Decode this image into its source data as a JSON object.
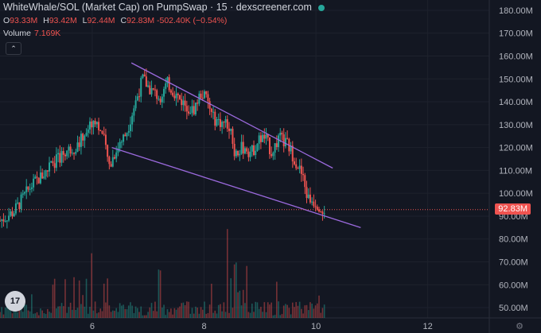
{
  "header": {
    "title": "WhiteWhale/SOL (Market Cap) on PumpSwap · 15 · dexscreener.com",
    "ohlc": [
      {
        "k": "O",
        "v": "93.33M"
      },
      {
        "k": "H",
        "v": "93.42M"
      },
      {
        "k": "L",
        "v": "92.44M"
      },
      {
        "k": "C",
        "v": "92.83M -502.40K (−0.54%)"
      }
    ],
    "volume_label": "Volume",
    "volume_value": "7.169K",
    "collapse_glyph": "⌃"
  },
  "logo_text": "17",
  "settings_glyph": "⚙",
  "colors": {
    "up": "#26a69a",
    "down": "#ef5350",
    "channel": "#9c6ade",
    "bg": "#131722",
    "grid": "#1e222d"
  },
  "chart_data": {
    "type": "candlestick",
    "y_axis_ticks": [
      "180.00M",
      "170.00M",
      "160.00M",
      "150.00M",
      "140.00M",
      "130.00M",
      "120.00M",
      "110.00M",
      "100.00M",
      "90.00M",
      "80.00M",
      "70.00M",
      "60.00M",
      "50.00M"
    ],
    "y_tick_values": [
      180,
      170,
      160,
      150,
      140,
      130,
      120,
      110,
      100,
      90,
      80,
      70,
      60,
      50
    ],
    "x_axis_ticks": [
      "6",
      "8",
      "10",
      "12"
    ],
    "x_tick_values": [
      6,
      8,
      10,
      12
    ],
    "x_range": [
      4.35,
      13.1
    ],
    "y_range_mcap_millions": [
      45.5,
      184.5
    ],
    "last_price_label": "92.83M",
    "last_price": 92.83,
    "close_path": [
      [
        4.35,
        88
      ],
      [
        4.6,
        92
      ],
      [
        4.9,
        103
      ],
      [
        5.2,
        110
      ],
      [
        5.5,
        118
      ],
      [
        5.75,
        121
      ],
      [
        5.9,
        128
      ],
      [
        6.05,
        133
      ],
      [
        6.2,
        124
      ],
      [
        6.3,
        112
      ],
      [
        6.45,
        120
      ],
      [
        6.6,
        126
      ],
      [
        6.75,
        138
      ],
      [
        6.9,
        150
      ],
      [
        7.05,
        145
      ],
      [
        7.2,
        142
      ],
      [
        7.35,
        148
      ],
      [
        7.5,
        143
      ],
      [
        7.65,
        139
      ],
      [
        7.8,
        136
      ],
      [
        7.95,
        144
      ],
      [
        8.05,
        141
      ],
      [
        8.15,
        133
      ],
      [
        8.3,
        131
      ],
      [
        8.45,
        130
      ],
      [
        8.55,
        118
      ],
      [
        8.7,
        120
      ],
      [
        8.85,
        118
      ],
      [
        9.0,
        124
      ],
      [
        9.1,
        124
      ],
      [
        9.2,
        118
      ],
      [
        9.35,
        124
      ],
      [
        9.5,
        121
      ],
      [
        9.6,
        116
      ],
      [
        9.75,
        108
      ],
      [
        9.85,
        98
      ],
      [
        10.0,
        96
      ],
      [
        10.15,
        93
      ]
    ],
    "upper_trendline": [
      [
        6.7,
        157
      ],
      [
        10.3,
        111
      ]
    ],
    "lower_trendline": [
      [
        6.35,
        120
      ],
      [
        10.8,
        85
      ]
    ]
  }
}
